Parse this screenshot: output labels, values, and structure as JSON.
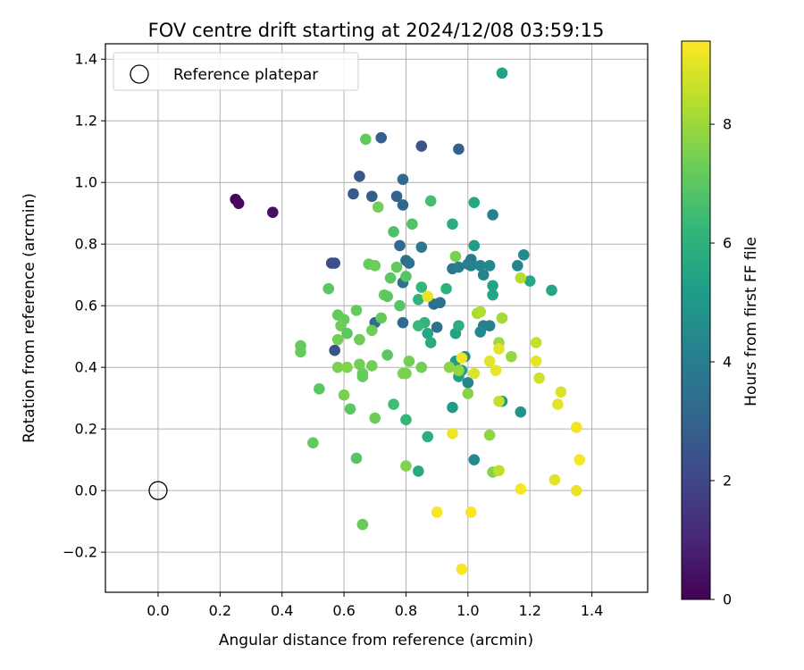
{
  "chart_data": {
    "type": "scatter",
    "title": "FOV centre drift starting at 2024/12/08 03:59:15",
    "xlabel": "Angular distance from reference (arcmin)",
    "ylabel": "Rotation from reference (arcmin)",
    "xlim": [
      -0.17,
      1.58
    ],
    "ylim": [
      -0.33,
      1.45
    ],
    "x_ticks": [
      0.0,
      0.2,
      0.4,
      0.6,
      0.8,
      1.0,
      1.2,
      1.4
    ],
    "y_ticks": [
      -0.2,
      0.0,
      0.2,
      0.4,
      0.6,
      0.8,
      1.0,
      1.2,
      1.4
    ],
    "x_tick_labels": [
      "0.0",
      "0.2",
      "0.4",
      "0.6",
      "0.8",
      "1.0",
      "1.2",
      "1.4"
    ],
    "y_tick_labels": [
      "−0.2",
      "0.0",
      "0.2",
      "0.4",
      "0.6",
      "0.8",
      "1.0",
      "1.2",
      "1.4"
    ],
    "grid": true,
    "legend": {
      "position": "upper-left",
      "entries": [
        "Reference platepar"
      ]
    },
    "reference_point": {
      "x": 0.0,
      "y": 0.0,
      "label": "Reference platepar"
    },
    "colorbar": {
      "label": "Hours from first FF file",
      "colormap": "viridis",
      "range": [
        0,
        9.4
      ],
      "ticks": [
        0,
        2,
        4,
        6,
        8
      ],
      "tick_labels": [
        "0",
        "2",
        "4",
        "6",
        "8"
      ]
    },
    "points": [
      {
        "x": 0.25,
        "y": 0.945,
        "c": 0.1
      },
      {
        "x": 0.26,
        "y": 0.932,
        "c": 0.2
      },
      {
        "x": 0.37,
        "y": 0.903,
        "c": 0.4
      },
      {
        "x": 0.56,
        "y": 0.738,
        "c": 2.2
      },
      {
        "x": 0.57,
        "y": 0.738,
        "c": 2.3
      },
      {
        "x": 0.57,
        "y": 0.455,
        "c": 2.4
      },
      {
        "x": 0.65,
        "y": 1.02,
        "c": 2.6
      },
      {
        "x": 0.63,
        "y": 0.963,
        "c": 2.7
      },
      {
        "x": 0.69,
        "y": 0.955,
        "c": 2.8
      },
      {
        "x": 0.72,
        "y": 1.145,
        "c": 2.9
      },
      {
        "x": 0.77,
        "y": 0.955,
        "c": 3.0
      },
      {
        "x": 0.79,
        "y": 0.927,
        "c": 3.1
      },
      {
        "x": 0.79,
        "y": 1.01,
        "c": 3.2
      },
      {
        "x": 0.85,
        "y": 1.118,
        "c": 2.5
      },
      {
        "x": 0.97,
        "y": 1.108,
        "c": 2.9
      },
      {
        "x": 0.7,
        "y": 0.545,
        "c": 3.3
      },
      {
        "x": 0.78,
        "y": 0.795,
        "c": 3.2
      },
      {
        "x": 0.8,
        "y": 0.747,
        "c": 3.4
      },
      {
        "x": 0.81,
        "y": 0.738,
        "c": 3.5
      },
      {
        "x": 0.79,
        "y": 0.675,
        "c": 3.6
      },
      {
        "x": 0.79,
        "y": 0.545,
        "c": 3.3
      },
      {
        "x": 0.85,
        "y": 0.79,
        "c": 3.8
      },
      {
        "x": 0.89,
        "y": 0.605,
        "c": 3.4
      },
      {
        "x": 0.9,
        "y": 0.53,
        "c": 3.5
      },
      {
        "x": 0.91,
        "y": 0.61,
        "c": 3.6
      },
      {
        "x": 0.95,
        "y": 0.72,
        "c": 3.7
      },
      {
        "x": 0.97,
        "y": 0.725,
        "c": 3.9
      },
      {
        "x": 1.0,
        "y": 0.735,
        "c": 4.0
      },
      {
        "x": 1.01,
        "y": 0.75,
        "c": 3.8
      },
      {
        "x": 1.01,
        "y": 0.73,
        "c": 4.1
      },
      {
        "x": 1.04,
        "y": 0.73,
        "c": 4.2
      },
      {
        "x": 1.05,
        "y": 0.7,
        "c": 4.3
      },
      {
        "x": 1.07,
        "y": 0.73,
        "c": 4.4
      },
      {
        "x": 1.08,
        "y": 0.895,
        "c": 4.2
      },
      {
        "x": 1.16,
        "y": 0.73,
        "c": 4.3
      },
      {
        "x": 1.18,
        "y": 0.765,
        "c": 4.5
      },
      {
        "x": 1.05,
        "y": 0.535,
        "c": 4.0
      },
      {
        "x": 1.07,
        "y": 0.535,
        "c": 4.1
      },
      {
        "x": 1.04,
        "y": 0.515,
        "c": 4.4
      },
      {
        "x": 0.99,
        "y": 0.435,
        "c": 4.6
      },
      {
        "x": 1.0,
        "y": 0.35,
        "c": 4.2
      },
      {
        "x": 1.02,
        "y": 0.1,
        "c": 4.5
      },
      {
        "x": 1.17,
        "y": 0.255,
        "c": 4.8
      },
      {
        "x": 1.11,
        "y": 0.29,
        "c": 5.0
      },
      {
        "x": 0.95,
        "y": 0.27,
        "c": 5.1
      },
      {
        "x": 0.96,
        "y": 0.42,
        "c": 5.0
      },
      {
        "x": 0.98,
        "y": 0.39,
        "c": 5.2
      },
      {
        "x": 0.97,
        "y": 0.37,
        "c": 5.3
      },
      {
        "x": 0.96,
        "y": 0.51,
        "c": 5.4
      },
      {
        "x": 1.02,
        "y": 0.795,
        "c": 5.2
      },
      {
        "x": 1.08,
        "y": 0.635,
        "c": 5.5
      },
      {
        "x": 1.08,
        "y": 0.665,
        "c": 5.4
      },
      {
        "x": 1.2,
        "y": 0.68,
        "c": 5.6
      },
      {
        "x": 1.27,
        "y": 0.65,
        "c": 5.5
      },
      {
        "x": 1.11,
        "y": 1.355,
        "c": 5.4
      },
      {
        "x": 1.02,
        "y": 0.935,
        "c": 5.6
      },
      {
        "x": 0.95,
        "y": 0.865,
        "c": 5.8
      },
      {
        "x": 0.93,
        "y": 0.655,
        "c": 6.0
      },
      {
        "x": 0.97,
        "y": 0.535,
        "c": 5.9
      },
      {
        "x": 0.87,
        "y": 0.51,
        "c": 5.6
      },
      {
        "x": 0.86,
        "y": 0.545,
        "c": 6.1
      },
      {
        "x": 0.84,
        "y": 0.535,
        "c": 6.3
      },
      {
        "x": 0.85,
        "y": 0.66,
        "c": 6.2
      },
      {
        "x": 0.84,
        "y": 0.62,
        "c": 6.1
      },
      {
        "x": 0.88,
        "y": 0.48,
        "c": 5.8
      },
      {
        "x": 0.84,
        "y": 0.063,
        "c": 5.7
      },
      {
        "x": 0.87,
        "y": 0.175,
        "c": 5.9
      },
      {
        "x": 0.8,
        "y": 0.23,
        "c": 6.2
      },
      {
        "x": 0.76,
        "y": 0.28,
        "c": 6.5
      },
      {
        "x": 0.76,
        "y": 0.84,
        "c": 6.7
      },
      {
        "x": 0.82,
        "y": 0.865,
        "c": 6.8
      },
      {
        "x": 0.88,
        "y": 0.94,
        "c": 6.6
      },
      {
        "x": 0.8,
        "y": 0.695,
        "c": 6.9
      },
      {
        "x": 0.78,
        "y": 0.6,
        "c": 6.9
      },
      {
        "x": 0.75,
        "y": 0.69,
        "c": 7.0
      },
      {
        "x": 0.77,
        "y": 0.725,
        "c": 7.1
      },
      {
        "x": 0.73,
        "y": 0.635,
        "c": 7.2
      },
      {
        "x": 0.74,
        "y": 0.63,
        "c": 7.0
      },
      {
        "x": 0.72,
        "y": 0.56,
        "c": 7.1
      },
      {
        "x": 0.69,
        "y": 0.52,
        "c": 7.3
      },
      {
        "x": 0.68,
        "y": 0.735,
        "c": 7.2
      },
      {
        "x": 0.7,
        "y": 0.73,
        "c": 7.3
      },
      {
        "x": 0.71,
        "y": 0.92,
        "c": 7.4
      },
      {
        "x": 0.67,
        "y": 1.14,
        "c": 7.1
      },
      {
        "x": 0.55,
        "y": 0.655,
        "c": 7.0
      },
      {
        "x": 0.58,
        "y": 0.57,
        "c": 7.1
      },
      {
        "x": 0.6,
        "y": 0.555,
        "c": 7.2
      },
      {
        "x": 0.59,
        "y": 0.535,
        "c": 7.3
      },
      {
        "x": 0.61,
        "y": 0.51,
        "c": 7.0
      },
      {
        "x": 0.58,
        "y": 0.49,
        "c": 7.4
      },
      {
        "x": 0.64,
        "y": 0.585,
        "c": 7.2
      },
      {
        "x": 0.65,
        "y": 0.49,
        "c": 7.3
      },
      {
        "x": 0.58,
        "y": 0.4,
        "c": 7.5
      },
      {
        "x": 0.61,
        "y": 0.4,
        "c": 7.6
      },
      {
        "x": 0.65,
        "y": 0.41,
        "c": 7.4
      },
      {
        "x": 0.66,
        "y": 0.38,
        "c": 7.3
      },
      {
        "x": 0.66,
        "y": 0.37,
        "c": 7.2
      },
      {
        "x": 0.69,
        "y": 0.405,
        "c": 7.4
      },
      {
        "x": 0.74,
        "y": 0.44,
        "c": 7.0
      },
      {
        "x": 0.6,
        "y": 0.31,
        "c": 7.5
      },
      {
        "x": 0.62,
        "y": 0.265,
        "c": 7.0
      },
      {
        "x": 0.7,
        "y": 0.235,
        "c": 7.3
      },
      {
        "x": 0.46,
        "y": 0.47,
        "c": 7.1
      },
      {
        "x": 0.46,
        "y": 0.45,
        "c": 7.2
      },
      {
        "x": 0.52,
        "y": 0.33,
        "c": 7.0
      },
      {
        "x": 0.5,
        "y": 0.155,
        "c": 7.1
      },
      {
        "x": 0.64,
        "y": 0.105,
        "c": 6.9
      },
      {
        "x": 0.66,
        "y": -0.11,
        "c": 7.2
      },
      {
        "x": 0.79,
        "y": 0.38,
        "c": 7.6
      },
      {
        "x": 0.81,
        "y": 0.42,
        "c": 7.4
      },
      {
        "x": 0.8,
        "y": 0.38,
        "c": 7.5
      },
      {
        "x": 0.85,
        "y": 0.4,
        "c": 7.4
      },
      {
        "x": 0.8,
        "y": 0.08,
        "c": 7.6
      },
      {
        "x": 0.96,
        "y": 0.76,
        "c": 7.5
      },
      {
        "x": 0.94,
        "y": 0.4,
        "c": 7.8
      },
      {
        "x": 0.97,
        "y": 0.39,
        "c": 7.9
      },
      {
        "x": 1.0,
        "y": 0.315,
        "c": 7.7
      },
      {
        "x": 1.03,
        "y": 0.575,
        "c": 8.2
      },
      {
        "x": 1.04,
        "y": 0.58,
        "c": 8.3
      },
      {
        "x": 1.1,
        "y": 0.48,
        "c": 8.0
      },
      {
        "x": 1.11,
        "y": 0.56,
        "c": 8.1
      },
      {
        "x": 1.14,
        "y": 0.435,
        "c": 7.9
      },
      {
        "x": 1.07,
        "y": 0.18,
        "c": 7.8
      },
      {
        "x": 1.08,
        "y": 0.06,
        "c": 7.7
      },
      {
        "x": 1.1,
        "y": 0.065,
        "c": 8.5
      },
      {
        "x": 1.1,
        "y": 0.29,
        "c": 8.6
      },
      {
        "x": 1.17,
        "y": 0.69,
        "c": 8.4
      },
      {
        "x": 1.22,
        "y": 0.48,
        "c": 8.6
      },
      {
        "x": 1.23,
        "y": 0.365,
        "c": 8.7
      },
      {
        "x": 1.02,
        "y": 0.38,
        "c": 8.9
      },
      {
        "x": 1.07,
        "y": 0.42,
        "c": 9.0
      },
      {
        "x": 1.09,
        "y": 0.39,
        "c": 9.1
      },
      {
        "x": 1.1,
        "y": 0.46,
        "c": 9.0
      },
      {
        "x": 1.22,
        "y": 0.42,
        "c": 9.1
      },
      {
        "x": 0.98,
        "y": 0.43,
        "c": 9.2
      },
      {
        "x": 0.87,
        "y": 0.63,
        "c": 9.1
      },
      {
        "x": 1.3,
        "y": 0.32,
        "c": 8.9
      },
      {
        "x": 1.29,
        "y": 0.28,
        "c": 9.0
      },
      {
        "x": 1.35,
        "y": 0.205,
        "c": 9.2
      },
      {
        "x": 1.36,
        "y": 0.1,
        "c": 9.3
      },
      {
        "x": 1.28,
        "y": 0.035,
        "c": 9.0
      },
      {
        "x": 1.35,
        "y": 0.0,
        "c": 9.1
      },
      {
        "x": 1.17,
        "y": 0.005,
        "c": 9.3
      },
      {
        "x": 0.95,
        "y": 0.185,
        "c": 9.2
      },
      {
        "x": 0.9,
        "y": -0.07,
        "c": 9.3
      },
      {
        "x": 1.01,
        "y": -0.07,
        "c": 9.3
      },
      {
        "x": 0.98,
        "y": -0.255,
        "c": 9.3
      }
    ]
  }
}
